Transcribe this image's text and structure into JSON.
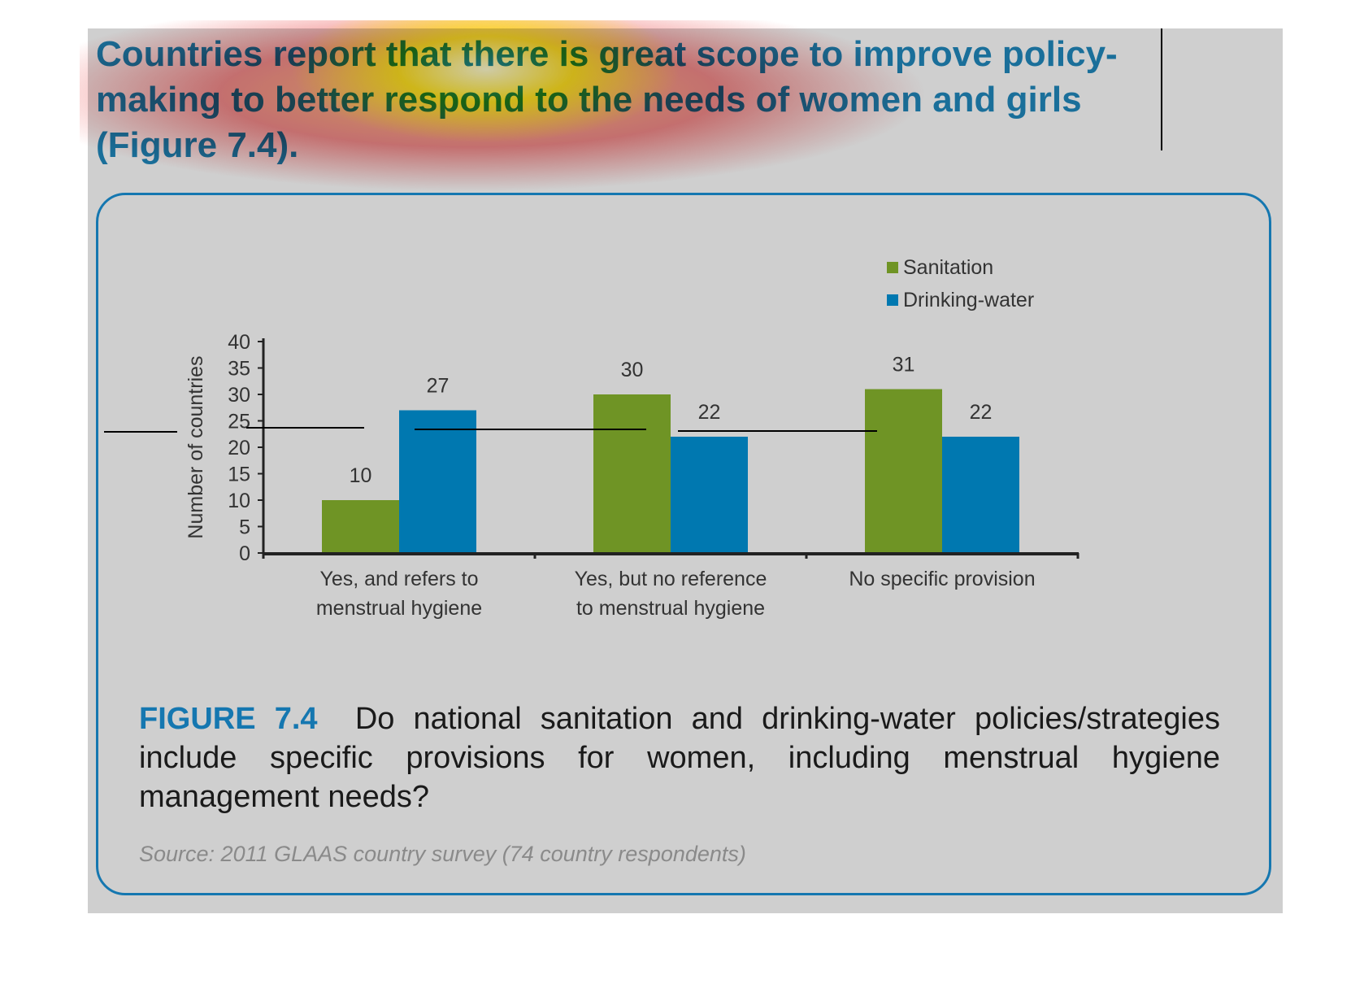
{
  "headline": "Countries report that there is great scope to improve policy-making to better respond to the needs of women and girls (Figure 7.4).",
  "colors": {
    "sanitation": "#6f9425",
    "drinking_water": "#0078b0",
    "accent": "#1577b0",
    "panel_background": "#cfcfcf"
  },
  "chart_data": {
    "type": "bar",
    "categories": [
      [
        "Yes, and refers to",
        "menstrual hygiene"
      ],
      [
        "Yes, but no reference",
        "to menstrual hygiene"
      ],
      [
        "No specific provision"
      ]
    ],
    "series": [
      {
        "name": "Sanitation",
        "values": [
          10,
          30,
          31
        ],
        "color": "#6f9425"
      },
      {
        "name": "Drinking-water",
        "values": [
          27,
          22,
          22
        ],
        "color": "#0078b0"
      }
    ],
    "ylabel": "Number of countries",
    "ylim": [
      0,
      40
    ],
    "yticks": [
      0,
      5,
      10,
      15,
      20,
      25,
      30,
      35,
      40
    ],
    "grid": false,
    "legend": "top-right",
    "data_labels": true
  },
  "caption": {
    "label": "FIGURE 7.4",
    "text": "Do national sanitation and drinking-water policies/strategies include specific provisions for women, including menstrual hygiene management needs?"
  },
  "source": "Source: 2011 GLAAS country survey (74 country respondents)"
}
